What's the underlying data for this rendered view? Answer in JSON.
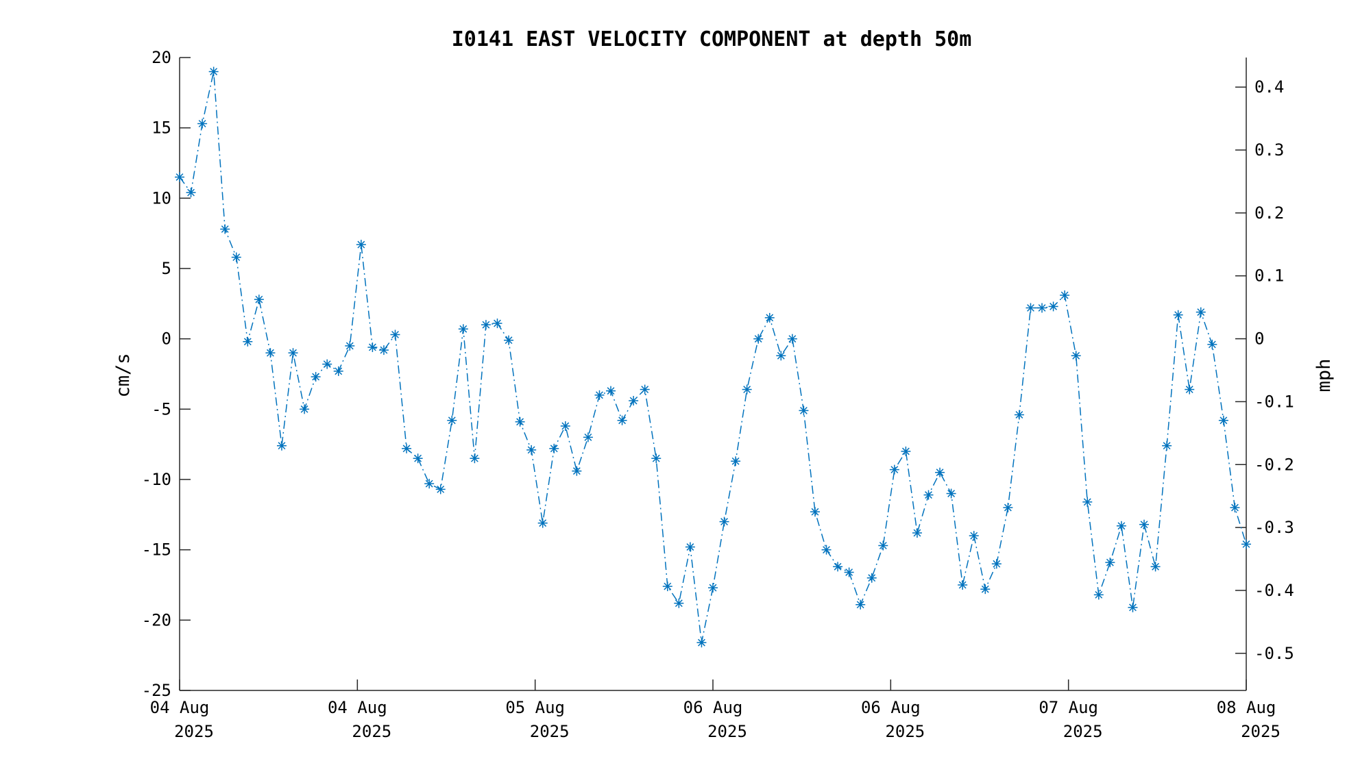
{
  "chart_data": {
    "type": "line",
    "title": "I0141 EAST VELOCITY COMPONENT at depth 50m",
    "ylabel": "cm/s",
    "ylabel_right": "mph",
    "ylim": [
      -25,
      20
    ],
    "yticks": [
      -25,
      -20,
      -15,
      -10,
      -5,
      0,
      5,
      10,
      15,
      20
    ],
    "yticks_right": [
      -0.5,
      -0.4,
      -0.3,
      -0.2,
      -0.1,
      0,
      0.1,
      0.2,
      0.3,
      0.4
    ],
    "ytick_labels_right": [
      "-0.5",
      "-0.4",
      "-0.3",
      "-0.2",
      "-0.1",
      "0",
      "0.1",
      "0.2",
      "0.3",
      "0.4"
    ],
    "xtick_labels": [
      [
        "04 Aug",
        "2025"
      ],
      [
        "04 Aug",
        "2025"
      ],
      [
        "05 Aug",
        "2025"
      ],
      [
        "06 Aug",
        "2025"
      ],
      [
        "06 Aug",
        "2025"
      ],
      [
        "07 Aug",
        "2025"
      ],
      [
        "08 Aug",
        "2025"
      ]
    ],
    "grid": false,
    "line_color": "#0072BD",
    "line_style": "dash-dot",
    "marker": "asterisk",
    "series": [
      {
        "values": [
          11.5,
          10.4,
          15.3,
          19.0,
          7.8,
          5.8,
          -0.2,
          2.8,
          -1.0,
          -7.6,
          -1.0,
          -5.0,
          -2.7,
          -1.8,
          -2.3,
          -0.5,
          6.7,
          -0.6,
          -0.8,
          0.3,
          -7.8,
          -8.5,
          -10.3,
          -10.7,
          -5.8,
          0.7,
          -8.5,
          1.0,
          1.1,
          -0.1,
          -5.9,
          -7.9,
          -13.1,
          -7.8,
          -6.2,
          -9.4,
          -7.0,
          -4.0,
          -3.7,
          -5.8,
          -4.4,
          -3.6,
          -8.5,
          -17.6,
          -18.8,
          -14.8,
          -21.6,
          -17.7,
          -13.0,
          -8.7,
          -3.6,
          0.0,
          1.5,
          -1.2,
          0.0,
          -5.1,
          -12.3,
          -15.0,
          -16.2,
          -16.6,
          -18.9,
          -17.0,
          -14.7,
          -9.3,
          -8.0,
          -13.8,
          -11.1,
          -9.5,
          -11.0,
          -17.5,
          -14.0,
          -17.8,
          -16.0,
          -12.0,
          -5.4,
          2.2,
          2.2,
          2.3,
          3.1,
          -1.2,
          -11.6,
          -18.2,
          -15.9,
          -13.3,
          -19.1,
          -13.2,
          -16.2,
          -7.6,
          1.7,
          -3.6,
          1.9,
          -0.4,
          -5.8,
          -12.0,
          -14.6
        ]
      }
    ]
  }
}
